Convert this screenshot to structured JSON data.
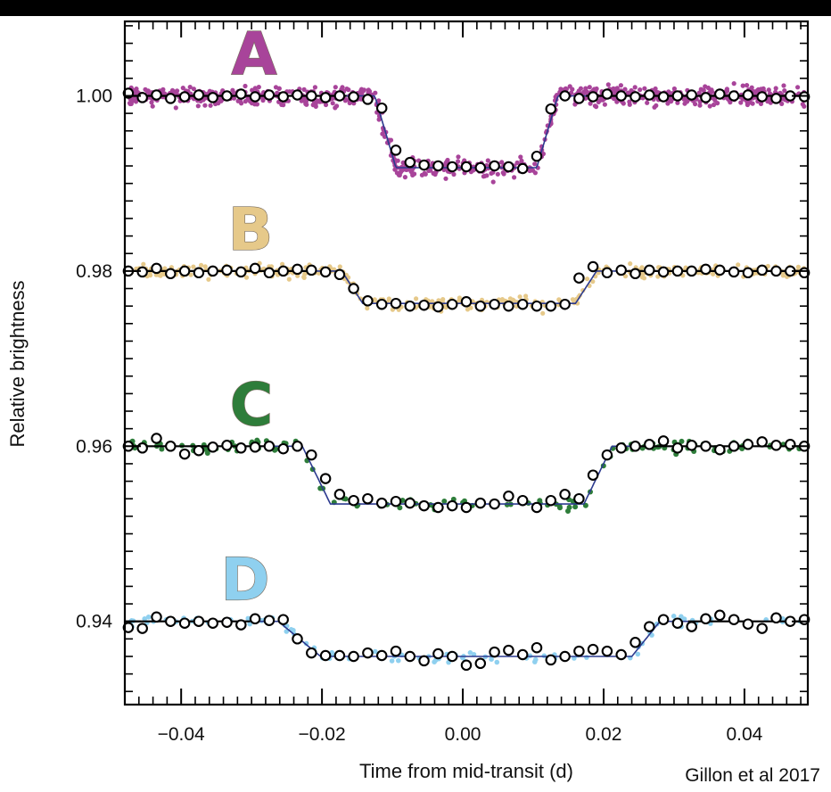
{
  "chart_data": {
    "type": "scatter",
    "title": "",
    "xlabel": "Time from mid-transit (d)",
    "ylabel": "Relative brightness",
    "xlim": [
      -0.048,
      0.049
    ],
    "ylim": [
      0.9305,
      1.0085
    ],
    "xticks": [
      -0.04,
      -0.02,
      0.0,
      0.02,
      0.04
    ],
    "xtick_labels": [
      "−0.04",
      "−0.02",
      "0.00",
      "0.02",
      "0.04"
    ],
    "yticks": [
      0.94,
      0.96,
      0.98,
      1.0
    ],
    "ytick_labels": [
      "0.94",
      "0.96",
      "0.98",
      "1.00"
    ],
    "grid": false,
    "credit": "Gillon et al 2017",
    "series": [
      {
        "label": "A",
        "color": "#a8449a",
        "baseline": 1.0,
        "depth": 0.0082,
        "ingress_start": -0.0125,
        "ingress_end": -0.0095,
        "egress_start": 0.0105,
        "egress_end": 0.0135,
        "raw_scatter": 0.0009,
        "binned_points": [
          [
            -0.0475,
            1.0003
          ],
          [
            -0.0455,
            0.9998
          ],
          [
            -0.0435,
            1.0001
          ],
          [
            -0.0415,
            0.9997
          ],
          [
            -0.0395,
            0.9999
          ],
          [
            -0.0375,
            1.0001
          ],
          [
            -0.0355,
            0.9998
          ],
          [
            -0.0335,
            1.0
          ],
          [
            -0.0315,
            1.0002
          ],
          [
            -0.0295,
            0.9999
          ],
          [
            -0.0275,
            1.0001
          ],
          [
            -0.0255,
            0.9999
          ],
          [
            -0.0235,
            1.0001
          ],
          [
            -0.0215,
            1.0
          ],
          [
            -0.0195,
            0.9998
          ],
          [
            -0.0175,
            1.0
          ],
          [
            -0.0155,
            0.9999
          ],
          [
            -0.0135,
            0.9996
          ],
          [
            -0.0115,
            0.9986
          ],
          [
            -0.0095,
            0.9938
          ],
          [
            -0.0075,
            0.9924
          ],
          [
            -0.0055,
            0.9921
          ],
          [
            -0.0035,
            0.992
          ],
          [
            -0.0015,
            0.9919
          ],
          [
            0.0005,
            0.9919
          ],
          [
            0.0025,
            0.9918
          ],
          [
            0.0045,
            0.992
          ],
          [
            0.0065,
            0.9919
          ],
          [
            0.0085,
            0.9917
          ],
          [
            0.0105,
            0.9931
          ],
          [
            0.0125,
            0.9985
          ],
          [
            0.0145,
            1.0
          ],
          [
            0.0165,
            0.9997
          ],
          [
            0.0185,
            0.9999
          ],
          [
            0.0205,
            1.0002
          ],
          [
            0.0225,
            1.0
          ],
          [
            0.0245,
            0.9999
          ],
          [
            0.0265,
            1.0001
          ],
          [
            0.0285,
            0.9999
          ],
          [
            0.0305,
            1.0
          ],
          [
            0.0325,
            1.0001
          ],
          [
            0.0345,
            0.9998
          ],
          [
            0.0365,
            1.0002
          ],
          [
            0.0385,
            1.0
          ],
          [
            0.0405,
            1.0001
          ],
          [
            0.0425,
            0.9999
          ],
          [
            0.0445,
            0.9997
          ],
          [
            0.0465,
            1.0
          ],
          [
            0.0485,
            0.9999
          ]
        ]
      },
      {
        "label": "B",
        "color": "#e6c98a",
        "baseline": 0.98,
        "depth": 0.0037,
        "ingress_start": -0.0172,
        "ingress_end": -0.0142,
        "egress_start": 0.016,
        "egress_end": 0.019,
        "raw_scatter": 0.0006,
        "binned_points": [
          [
            -0.0475,
            0.98
          ],
          [
            -0.0455,
            0.9799
          ],
          [
            -0.0435,
            0.9803
          ],
          [
            -0.0415,
            0.9797
          ],
          [
            -0.0395,
            0.98
          ],
          [
            -0.0375,
            0.9798
          ],
          [
            -0.0355,
            0.98
          ],
          [
            -0.0335,
            0.9801
          ],
          [
            -0.0315,
            0.9799
          ],
          [
            -0.0295,
            0.9803
          ],
          [
            -0.0275,
            0.9798
          ],
          [
            -0.0255,
            0.98
          ],
          [
            -0.0235,
            0.9802
          ],
          [
            -0.0215,
            0.9801
          ],
          [
            -0.0195,
            0.9799
          ],
          [
            -0.0175,
            0.9796
          ],
          [
            -0.0155,
            0.978
          ],
          [
            -0.0135,
            0.9766
          ],
          [
            -0.0115,
            0.9762
          ],
          [
            -0.0095,
            0.9763
          ],
          [
            -0.0075,
            0.976
          ],
          [
            -0.0055,
            0.9761
          ],
          [
            -0.0035,
            0.9759
          ],
          [
            -0.0015,
            0.9762
          ],
          [
            0.0005,
            0.9765
          ],
          [
            0.0025,
            0.976
          ],
          [
            0.0045,
            0.9762
          ],
          [
            0.0065,
            0.976
          ],
          [
            0.0085,
            0.9762
          ],
          [
            0.0105,
            0.976
          ],
          [
            0.0125,
            0.976
          ],
          [
            0.0145,
            0.9762
          ],
          [
            0.0165,
            0.9792
          ],
          [
            0.0185,
            0.9805
          ],
          [
            0.0205,
            0.9798
          ],
          [
            0.0225,
            0.9801
          ],
          [
            0.0245,
            0.9797
          ],
          [
            0.0265,
            0.9801
          ],
          [
            0.0285,
            0.9799
          ],
          [
            0.0305,
            0.98
          ],
          [
            0.0325,
            0.98
          ],
          [
            0.0345,
            0.9802
          ],
          [
            0.0365,
            0.9801
          ],
          [
            0.0385,
            0.9799
          ],
          [
            0.0405,
            0.9798
          ],
          [
            0.0425,
            0.9801
          ],
          [
            0.0445,
            0.98
          ],
          [
            0.0465,
            0.98
          ],
          [
            0.0485,
            0.9798
          ]
        ]
      },
      {
        "label": "C",
        "color": "#2e7d3a",
        "baseline": 0.96,
        "depth": 0.0066,
        "ingress_start": -0.0228,
        "ingress_end": -0.0188,
        "egress_start": 0.0172,
        "egress_end": 0.0212,
        "raw_scatter": 0.0006,
        "binned_points": [
          [
            -0.0475,
            0.96
          ],
          [
            -0.0455,
            0.9598
          ],
          [
            -0.0435,
            0.9609
          ],
          [
            -0.0415,
            0.96
          ],
          [
            -0.0395,
            0.9591
          ],
          [
            -0.0375,
            0.9595
          ],
          [
            -0.0355,
            0.9599
          ],
          [
            -0.0335,
            0.9601
          ],
          [
            -0.0315,
            0.9598
          ],
          [
            -0.0295,
            0.9599
          ],
          [
            -0.0275,
            0.96
          ],
          [
            -0.0255,
            0.9597
          ],
          [
            -0.0235,
            0.96
          ],
          [
            -0.0215,
            0.959
          ],
          [
            -0.0195,
            0.9563
          ],
          [
            -0.0175,
            0.9545
          ],
          [
            -0.0155,
            0.9538
          ],
          [
            -0.0135,
            0.954
          ],
          [
            -0.0115,
            0.9535
          ],
          [
            -0.0095,
            0.9537
          ],
          [
            -0.0075,
            0.9535
          ],
          [
            -0.0055,
            0.9532
          ],
          [
            -0.0035,
            0.953
          ],
          [
            -0.0015,
            0.9532
          ],
          [
            0.0005,
            0.953
          ],
          [
            0.0025,
            0.9535
          ],
          [
            0.0045,
            0.9534
          ],
          [
            0.0065,
            0.9543
          ],
          [
            0.0085,
            0.9538
          ],
          [
            0.0105,
            0.953
          ],
          [
            0.0125,
            0.9538
          ],
          [
            0.0145,
            0.9545
          ],
          [
            0.0165,
            0.954
          ],
          [
            0.0185,
            0.9567
          ],
          [
            0.0205,
            0.959
          ],
          [
            0.0225,
            0.9598
          ],
          [
            0.0245,
            0.96
          ],
          [
            0.0265,
            0.9602
          ],
          [
            0.0285,
            0.9606
          ],
          [
            0.0305,
            0.9598
          ],
          [
            0.0325,
            0.9601
          ],
          [
            0.0345,
            0.96
          ],
          [
            0.0365,
            0.9596
          ],
          [
            0.0385,
            0.96
          ],
          [
            0.0405,
            0.9602
          ],
          [
            0.0425,
            0.9605
          ],
          [
            0.0445,
            0.9601
          ],
          [
            0.0465,
            0.9602
          ],
          [
            0.0485,
            0.96
          ]
        ]
      },
      {
        "label": "D",
        "color": "#8fd0ef",
        "baseline": 0.94,
        "depth": 0.004,
        "ingress_start": -0.0262,
        "ingress_end": -0.0202,
        "egress_start": 0.024,
        "egress_end": 0.028,
        "raw_scatter": 0.0005,
        "binned_points": [
          [
            -0.0475,
            0.9393
          ],
          [
            -0.0455,
            0.9392
          ],
          [
            -0.0435,
            0.9405
          ],
          [
            -0.0415,
            0.94
          ],
          [
            -0.0395,
            0.9398
          ],
          [
            -0.0375,
            0.94
          ],
          [
            -0.0355,
            0.9398
          ],
          [
            -0.0335,
            0.9399
          ],
          [
            -0.0315,
            0.9396
          ],
          [
            -0.0295,
            0.9403
          ],
          [
            -0.0275,
            0.9401
          ],
          [
            -0.0255,
            0.9402
          ],
          [
            -0.0235,
            0.938
          ],
          [
            -0.0215,
            0.9364
          ],
          [
            -0.0195,
            0.9361
          ],
          [
            -0.0175,
            0.9361
          ],
          [
            -0.0155,
            0.936
          ],
          [
            -0.0135,
            0.9364
          ],
          [
            -0.0115,
            0.9361
          ],
          [
            -0.0095,
            0.9366
          ],
          [
            -0.0075,
            0.936
          ],
          [
            -0.0055,
            0.9355
          ],
          [
            -0.0035,
            0.9363
          ],
          [
            -0.0015,
            0.936
          ],
          [
            0.0005,
            0.935
          ],
          [
            0.0025,
            0.9352
          ],
          [
            0.0045,
            0.9365
          ],
          [
            0.0065,
            0.9367
          ],
          [
            0.0085,
            0.9362
          ],
          [
            0.0105,
            0.937
          ],
          [
            0.0125,
            0.9356
          ],
          [
            0.0145,
            0.936
          ],
          [
            0.0165,
            0.9366
          ],
          [
            0.0185,
            0.9368
          ],
          [
            0.0205,
            0.9366
          ],
          [
            0.0225,
            0.9362
          ],
          [
            0.0245,
            0.9376
          ],
          [
            0.0265,
            0.9394
          ],
          [
            0.0285,
            0.9402
          ],
          [
            0.0305,
            0.9398
          ],
          [
            0.0325,
            0.9394
          ],
          [
            0.0345,
            0.9403
          ],
          [
            0.0365,
            0.9407
          ],
          [
            0.0385,
            0.9402
          ],
          [
            0.0405,
            0.9397
          ],
          [
            0.0425,
            0.9392
          ],
          [
            0.0445,
            0.9404
          ],
          [
            0.0465,
            0.94
          ],
          [
            0.0485,
            0.9402
          ]
        ]
      }
    ]
  }
}
